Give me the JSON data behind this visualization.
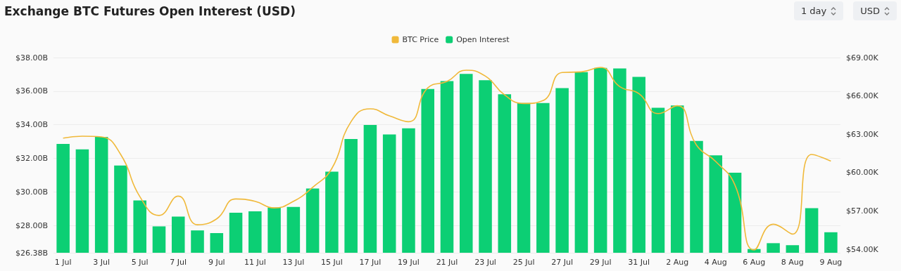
{
  "chart_data": {
    "type": "bar",
    "title": "Exchange BTC Futures Open Interest (USD)",
    "annotations": [
      "1 day",
      "USD"
    ],
    "categories": [
      "1 Jul",
      null,
      "3 Jul",
      null,
      "5 Jul",
      null,
      "7 Jul",
      null,
      "9 Jul",
      null,
      "11 Jul",
      null,
      "13 Jul",
      null,
      "15 Jul",
      null,
      "17 Jul",
      null,
      "19 Jul",
      null,
      "21 Jul",
      null,
      "23 Jul",
      null,
      "25 Jul",
      null,
      "27 Jul",
      null,
      "29 Jul",
      null,
      "31 Jul",
      null,
      "2 Aug",
      null,
      "4 Aug",
      null,
      "6 Aug",
      null,
      "8 Aug",
      null,
      "9 Aug"
    ],
    "series": [
      {
        "name": "BTC Price",
        "type": "line",
        "axis": "y2",
        "color": "#f0b93a",
        "values": [
          62.7,
          62.85,
          62.79,
          61.42,
          58.12,
          56.65,
          58.16,
          55.92,
          56.38,
          57.94,
          57.75,
          57.24,
          57.75,
          58.85,
          60.32,
          63.98,
          64.99,
          64.44,
          63.98,
          66.63,
          67.13,
          68.01,
          67.55,
          66.08,
          65.41,
          65.63,
          67.83,
          67.88,
          68.23,
          66.73,
          66.18,
          64.62,
          65.23,
          62.15,
          60.87,
          59.04,
          53.95,
          55.96,
          55.19,
          61.42,
          60.9
        ]
      },
      {
        "name": "Open Interest",
        "color": "#0ccf74",
        "values": [
          32.86,
          32.53,
          33.28,
          31.57,
          29.49,
          27.95,
          28.53,
          27.71,
          27.55,
          28.76,
          28.85,
          29.08,
          29.11,
          30.2,
          31.21,
          33.15,
          33.99,
          33.42,
          33.79,
          36.13,
          36.6,
          37.03,
          36.65,
          35.82,
          35.29,
          35.29,
          36.18,
          37.13,
          37.38,
          37.35,
          36.85,
          35.01,
          35.15,
          33.04,
          32.18,
          31.14,
          26.6,
          26.95,
          26.83,
          29.03,
          27.6
        ]
      }
    ],
    "ylim": [
      26.38,
      38
    ],
    "yticks": [
      {
        "value": 26.38,
        "label": "$26.38B"
      },
      {
        "value": 28,
        "label": "$28.00B"
      },
      {
        "value": 30,
        "label": "$30.00B"
      },
      {
        "value": 32,
        "label": "$32.00B"
      },
      {
        "value": 34,
        "label": "$34.00B"
      },
      {
        "value": 36,
        "label": "$36.00B"
      },
      {
        "value": 38,
        "label": "$38.00B"
      }
    ],
    "y2lim": [
      53.73,
      69
    ],
    "y2ticks": [
      {
        "value": 54,
        "label": "$54.00K"
      },
      {
        "value": 57,
        "label": "$57.00K"
      },
      {
        "value": 60,
        "label": "$60.00K"
      },
      {
        "value": 63,
        "label": "$63.00K"
      },
      {
        "value": 66,
        "label": "$66.00K"
      },
      {
        "value": 69,
        "label": "$69.00K"
      }
    ],
    "grid": "y",
    "legend": "top",
    "marker": "none",
    "line_style": "solid"
  }
}
